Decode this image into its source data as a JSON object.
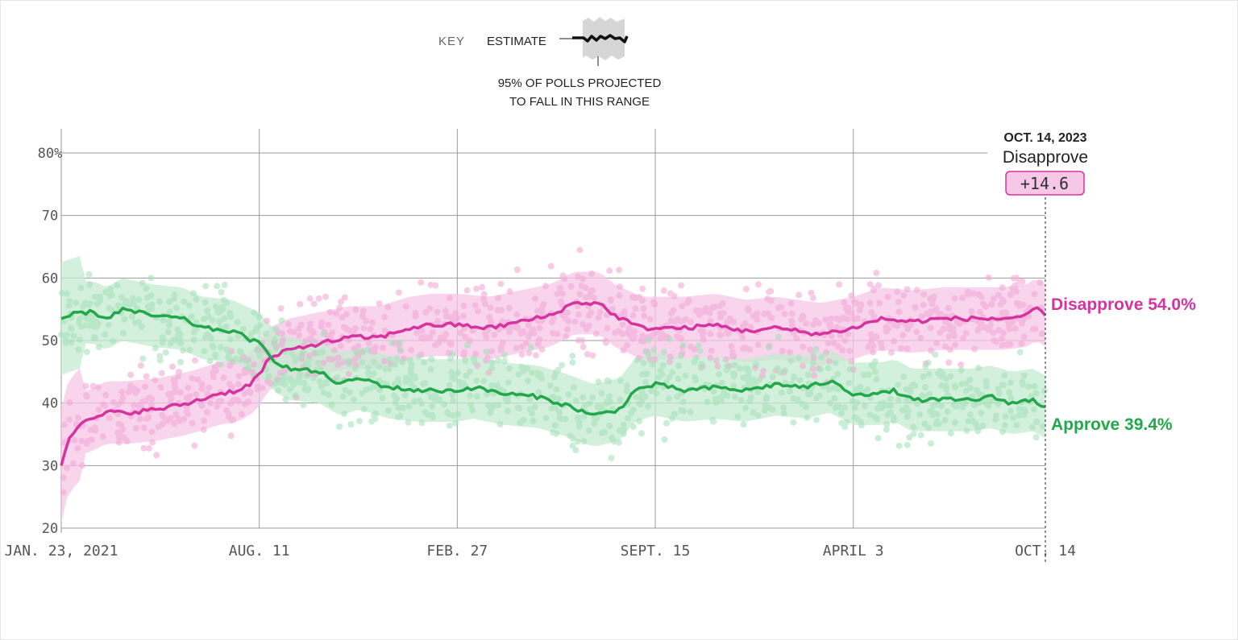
{
  "key": {
    "label": "KEY",
    "estimate_label": "ESTIMATE",
    "range_label_line1": "95% OF POLLS PROJECTED",
    "range_label_line2": "TO FALL IN THIS RANGE"
  },
  "callout": {
    "date": "OCT. 14, 2023",
    "leader": "Disapprove",
    "margin": "+14.6"
  },
  "end_labels": {
    "disapprove": "Disapprove 54.0%",
    "approve": "Approve 39.4%"
  },
  "colors": {
    "disapprove": "#d6339e",
    "approve": "#22a84a",
    "disapprove_band": "#f6c7e6",
    "approve_band": "#c4ebd0"
  },
  "chart_data": {
    "type": "line",
    "title": "",
    "xlabel": "",
    "ylabel": "",
    "ylim": [
      20,
      80
    ],
    "y_ticks": [
      20,
      30,
      40,
      50,
      60,
      70,
      80
    ],
    "y_tick_labels": [
      "20",
      "30",
      "40",
      "50",
      "60",
      "70",
      "80%"
    ],
    "x_range": [
      "2021-01-23",
      "2023-10-14"
    ],
    "x_ticks": [
      "2021-01-23",
      "2021-08-11",
      "2022-02-27",
      "2022-09-15",
      "2023-04-03",
      "2023-10-14"
    ],
    "x_tick_labels": [
      "JAN. 23, 2021",
      "AUG. 11",
      "FEB. 27",
      "SEPT. 15",
      "APRIL 3",
      "OCT. 14"
    ],
    "band_half_width": 5,
    "series": [
      {
        "name": "Disapprove",
        "final_value": 54.0,
        "points": [
          [
            "2021-01-23",
            30.0
          ],
          [
            "2021-01-30",
            34.5
          ],
          [
            "2021-02-10",
            36.5
          ],
          [
            "2021-02-25",
            37.5
          ],
          [
            "2021-03-10",
            38.5
          ],
          [
            "2021-04-01",
            38.5
          ],
          [
            "2021-05-01",
            39.0
          ],
          [
            "2021-06-01",
            40.0
          ],
          [
            "2021-07-01",
            41.5
          ],
          [
            "2021-07-20",
            42.0
          ],
          [
            "2021-08-01",
            43.0
          ],
          [
            "2021-08-11",
            44.5
          ],
          [
            "2021-08-20",
            47.0
          ],
          [
            "2021-09-10",
            48.5
          ],
          [
            "2021-10-10",
            49.5
          ],
          [
            "2021-11-10",
            50.5
          ],
          [
            "2021-12-10",
            50.5
          ],
          [
            "2022-01-10",
            52.0
          ],
          [
            "2022-02-01",
            52.5
          ],
          [
            "2022-02-27",
            52.5
          ],
          [
            "2022-04-01",
            52.0
          ],
          [
            "2022-05-01",
            53.0
          ],
          [
            "2022-06-01",
            54.0
          ],
          [
            "2022-06-25",
            56.0
          ],
          [
            "2022-07-20",
            56.0
          ],
          [
            "2022-08-05",
            54.0
          ],
          [
            "2022-09-01",
            52.0
          ],
          [
            "2022-09-15",
            52.0
          ],
          [
            "2022-10-15",
            52.0
          ],
          [
            "2022-11-15",
            52.5
          ],
          [
            "2022-12-15",
            51.5
          ],
          [
            "2023-01-15",
            52.0
          ],
          [
            "2023-03-01",
            51.0
          ],
          [
            "2023-04-03",
            52.0
          ],
          [
            "2023-05-01",
            53.5
          ],
          [
            "2023-06-01",
            53.0
          ],
          [
            "2023-07-01",
            53.5
          ],
          [
            "2023-08-01",
            53.5
          ],
          [
            "2023-09-01",
            53.5
          ],
          [
            "2023-09-25",
            54.0
          ],
          [
            "2023-10-05",
            55.0
          ],
          [
            "2023-10-14",
            54.0
          ]
        ]
      },
      {
        "name": "Approve",
        "final_value": 39.4,
        "points": [
          [
            "2021-01-23",
            53.5
          ],
          [
            "2021-02-10",
            54.5
          ],
          [
            "2021-02-25",
            54.5
          ],
          [
            "2021-03-10",
            53.5
          ],
          [
            "2021-03-25",
            55.0
          ],
          [
            "2021-04-25",
            54.0
          ],
          [
            "2021-05-25",
            53.5
          ],
          [
            "2021-06-15",
            52.0
          ],
          [
            "2021-07-15",
            51.5
          ],
          [
            "2021-08-11",
            49.5
          ],
          [
            "2021-08-25",
            47.0
          ],
          [
            "2021-09-10",
            45.5
          ],
          [
            "2021-10-10",
            45.0
          ],
          [
            "2021-11-01",
            43.0
          ],
          [
            "2021-11-20",
            44.0
          ],
          [
            "2021-12-20",
            42.5
          ],
          [
            "2022-01-20",
            42.0
          ],
          [
            "2022-02-27",
            42.0
          ],
          [
            "2022-03-15",
            42.5
          ],
          [
            "2022-04-15",
            41.5
          ],
          [
            "2022-05-20",
            41.0
          ],
          [
            "2022-06-20",
            39.5
          ],
          [
            "2022-07-15",
            38.0
          ],
          [
            "2022-08-10",
            39.0
          ],
          [
            "2022-08-25",
            42.0
          ],
          [
            "2022-09-15",
            43.0
          ],
          [
            "2022-10-15",
            42.0
          ],
          [
            "2022-11-15",
            42.5
          ],
          [
            "2022-12-15",
            42.0
          ],
          [
            "2023-01-15",
            43.0
          ],
          [
            "2023-02-15",
            42.5
          ],
          [
            "2023-03-10",
            43.5
          ],
          [
            "2023-04-03",
            41.5
          ],
          [
            "2023-05-01",
            41.5
          ],
          [
            "2023-05-15",
            42.0
          ],
          [
            "2023-06-01",
            40.5
          ],
          [
            "2023-07-01",
            40.5
          ],
          [
            "2023-08-01",
            40.5
          ],
          [
            "2023-08-20",
            41.0
          ],
          [
            "2023-09-10",
            40.0
          ],
          [
            "2023-10-01",
            40.5
          ],
          [
            "2023-10-14",
            39.4
          ]
        ]
      }
    ]
  }
}
